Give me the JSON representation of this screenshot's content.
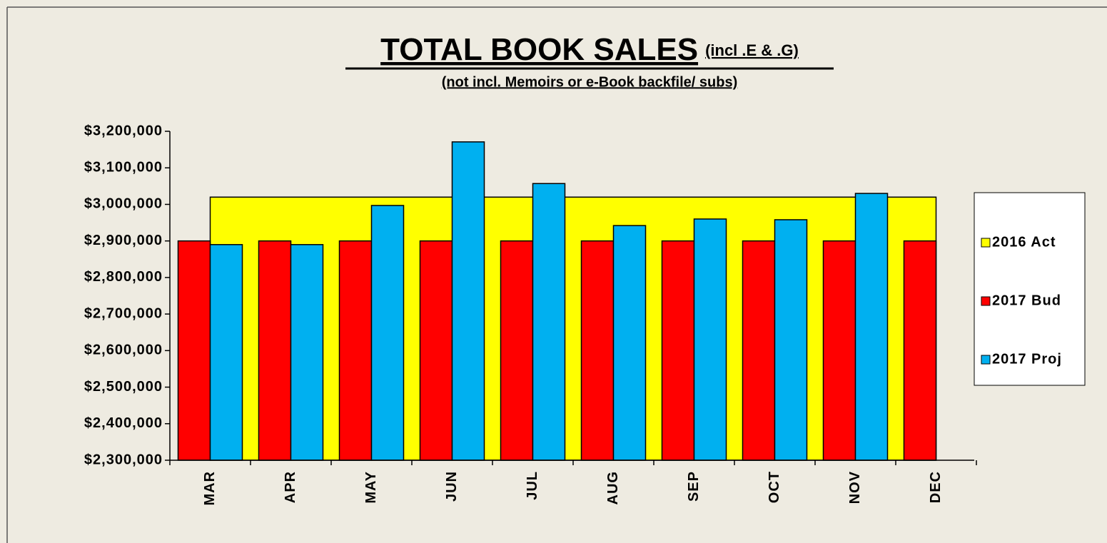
{
  "chart_data": {
    "type": "bar",
    "title": "TOTAL BOOK SALES",
    "title_note": "(incl .E & .G)",
    "subtitle": "(not incl. Memoirs or e-Book backfile/ subs)",
    "categories": [
      "MAR",
      "APR",
      "MAY",
      "JUN",
      "JUL",
      "AUG",
      "SEP",
      "OCT",
      "NOV",
      "DEC"
    ],
    "series": [
      {
        "name": "2016 Act",
        "type": "area",
        "color": "#ffff00",
        "values": [
          3020000,
          3020000,
          3020000,
          3020000,
          3020000,
          3020000,
          3020000,
          3020000,
          3020000,
          3020000
        ]
      },
      {
        "name": "2017 Bud",
        "type": "bar",
        "color": "#ff0000",
        "values": [
          2900000,
          2900000,
          2900000,
          2900000,
          2900000,
          2900000,
          2900000,
          2900000,
          2900000,
          2900000
        ]
      },
      {
        "name": "2017 Proj",
        "type": "bar",
        "color": "#00b0f0",
        "values": [
          2890000,
          2890000,
          2997000,
          3171000,
          3057000,
          2942000,
          2960000,
          2958000,
          3030000,
          null
        ]
      }
    ],
    "ylim": [
      2300000,
      3200000
    ],
    "yticks": [
      {
        "value": 2300000,
        "label": "$2,300,000"
      },
      {
        "value": 2400000,
        "label": "$2,400,000"
      },
      {
        "value": 2500000,
        "label": "$2,500,000"
      },
      {
        "value": 2600000,
        "label": "$2,600,000"
      },
      {
        "value": 2700000,
        "label": "$2,700,000"
      },
      {
        "value": 2800000,
        "label": "$2,800,000"
      },
      {
        "value": 2900000,
        "label": "$2,900,000"
      },
      {
        "value": 3000000,
        "label": "$3,000,000"
      },
      {
        "value": 3100000,
        "label": "$3,100,000"
      },
      {
        "value": 3200000,
        "label": "$3,200,000"
      }
    ],
    "grid": false,
    "legend": "right"
  }
}
